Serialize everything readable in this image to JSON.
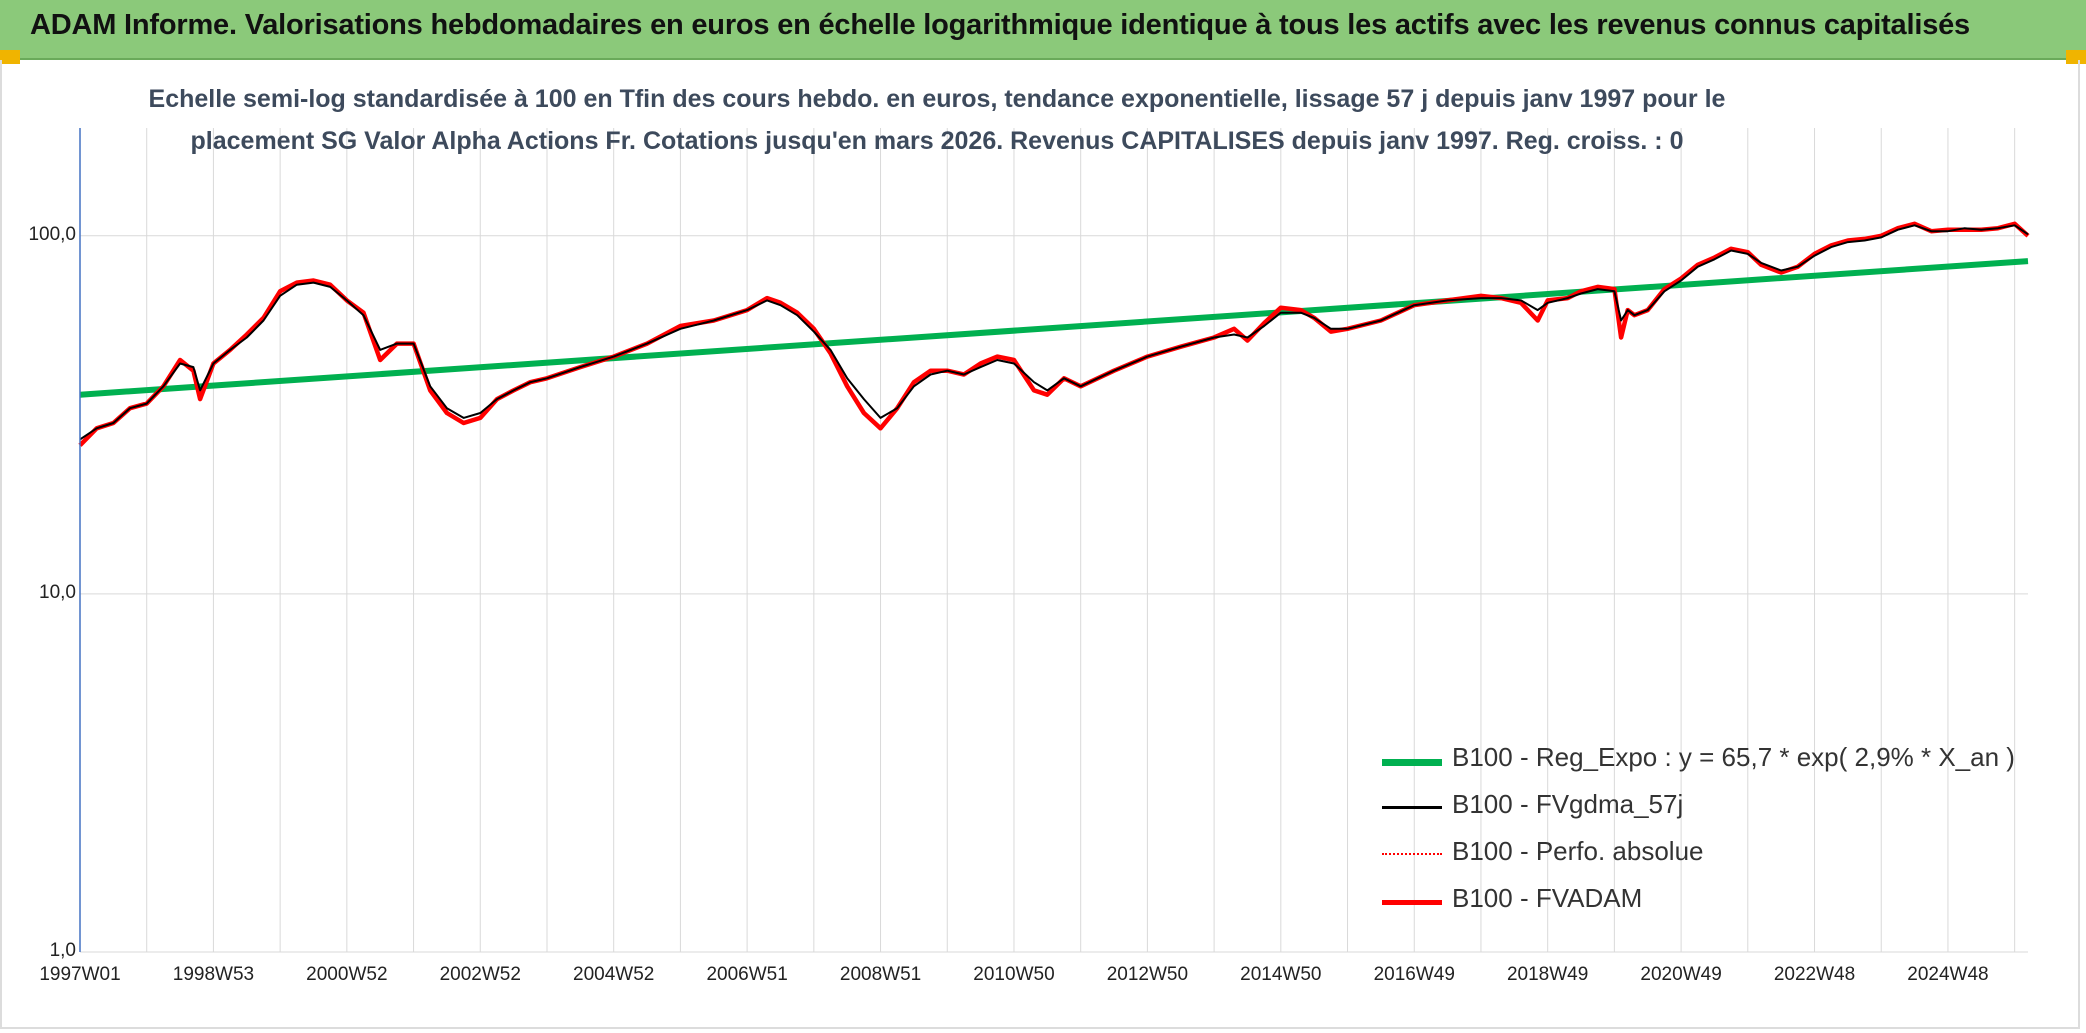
{
  "banner": {
    "title": "ADAM Informe. Valorisations hebdomadaires en euros en échelle logarithmique identique à tous les actifs avec les revenus connus capitalisés"
  },
  "colors": {
    "banner_bg": "#8bc97a",
    "regression": "#00b050",
    "smoothed": "#000000",
    "perfo": "#ff0000",
    "fvadam": "#ff0000",
    "grid": "#d9d9d9",
    "axis": "#4472c4"
  },
  "chart_data": {
    "type": "line",
    "title_line1": "Echelle semi-log standardisée à 100 en Tfin des cours hebdo. en euros, tendance exponentielle, lissage 57 j depuis janv 1997 pour le",
    "title_line2": "placement SG Valor Alpha Actions Fr. Cotations jusqu'en mars 2026. Revenus CAPITALISES depuis janv 1997. Reg. croiss. : 0",
    "y_scale": "log",
    "ylim": [
      1,
      200
    ],
    "xlim": [
      1997.0,
      2026.2
    ],
    "y_ticks": [
      {
        "value": 1,
        "label": "1,0"
      },
      {
        "value": 10,
        "label": "10,0"
      },
      {
        "value": 100,
        "label": "100,0"
      }
    ],
    "x_ticks": [
      {
        "value": 1997.0,
        "label": "1997W01"
      },
      {
        "value": 1999.0,
        "label": "1998W53"
      },
      {
        "value": 2001.0,
        "label": "2000W52"
      },
      {
        "value": 2003.0,
        "label": "2002W52"
      },
      {
        "value": 2005.0,
        "label": "2004W52"
      },
      {
        "value": 2007.0,
        "label": "2006W51"
      },
      {
        "value": 2009.0,
        "label": "2008W51"
      },
      {
        "value": 2011.0,
        "label": "2010W50"
      },
      {
        "value": 2013.0,
        "label": "2012W50"
      },
      {
        "value": 2015.0,
        "label": "2014W50"
      },
      {
        "value": 2017.0,
        "label": "2016W49"
      },
      {
        "value": 2019.0,
        "label": "2018W49"
      },
      {
        "value": 2021.0,
        "label": "2020W49"
      },
      {
        "value": 2023.0,
        "label": "2022W48"
      },
      {
        "value": 2025.0,
        "label": "2024W48"
      }
    ],
    "grid": true,
    "legend_position": "bottom-right",
    "x": [
      1997.0,
      1997.25,
      1997.5,
      1997.75,
      1998.0,
      1998.25,
      1998.5,
      1998.7,
      1998.8,
      1999.0,
      1999.25,
      1999.5,
      1999.75,
      2000.0,
      2000.25,
      2000.5,
      2000.75,
      2001.0,
      2001.25,
      2001.5,
      2001.75,
      2002.0,
      2002.25,
      2002.5,
      2002.75,
      2003.0,
      2003.25,
      2003.5,
      2003.75,
      2004.0,
      2004.5,
      2005.0,
      2005.5,
      2006.0,
      2006.5,
      2007.0,
      2007.3,
      2007.5,
      2007.75,
      2008.0,
      2008.25,
      2008.5,
      2008.75,
      2009.0,
      2009.25,
      2009.5,
      2009.75,
      2010.0,
      2010.25,
      2010.5,
      2010.75,
      2011.0,
      2011.3,
      2011.5,
      2011.75,
      2012.0,
      2012.5,
      2013.0,
      2013.5,
      2014.0,
      2014.3,
      2014.5,
      2014.75,
      2015.0,
      2015.3,
      2015.5,
      2015.75,
      2016.0,
      2016.5,
      2017.0,
      2017.5,
      2018.0,
      2018.3,
      2018.6,
      2018.85,
      2019.0,
      2019.3,
      2019.5,
      2019.75,
      2020.0,
      2020.1,
      2020.2,
      2020.3,
      2020.5,
      2020.75,
      2021.0,
      2021.25,
      2021.5,
      2021.75,
      2022.0,
      2022.2,
      2022.5,
      2022.75,
      2023.0,
      2023.25,
      2023.5,
      2023.75,
      2024.0,
      2024.25,
      2024.5,
      2024.75,
      2025.0,
      2025.25,
      2025.5,
      2025.75,
      2026.0,
      2026.2
    ],
    "series": [
      {
        "name": "B100 - Reg_Expo : y = 65,7 * exp( 2,9% *  X_an )",
        "role": "regression",
        "x": [
          1997.0,
          2026.2
        ],
        "values": [
          36,
          85
        ]
      },
      {
        "name": "B100 - FVgdma_57j",
        "role": "smoothed",
        "values": [
          27,
          29,
          30,
          33,
          34,
          38,
          44,
          43,
          37,
          44,
          48,
          52,
          58,
          68,
          73,
          74,
          72,
          66,
          60,
          48,
          50,
          50,
          38,
          33,
          31,
          32,
          35,
          37,
          39,
          40,
          43,
          46,
          50,
          55,
          58,
          62,
          66,
          64,
          60,
          54,
          48,
          40,
          35,
          31,
          33,
          38,
          41,
          42,
          41,
          43,
          45,
          44,
          39,
          37,
          40,
          38,
          42,
          46,
          49,
          52,
          53,
          52,
          56,
          61,
          61,
          59,
          55,
          55,
          58,
          64,
          66,
          67,
          67,
          66,
          62,
          65,
          67,
          69,
          71,
          70,
          58,
          62,
          60,
          62,
          70,
          75,
          82,
          86,
          91,
          89,
          84,
          80,
          82,
          88,
          93,
          96,
          97,
          99,
          104,
          107,
          103,
          103,
          105,
          104,
          105,
          107,
          101
        ]
      },
      {
        "name": "B100 - Perfo. absolue",
        "role": "perfo",
        "values": [
          26,
          29,
          30,
          33,
          34,
          38,
          45,
          42,
          35,
          44,
          48,
          53,
          59,
          70,
          74,
          75,
          73,
          66,
          61,
          45,
          50,
          50,
          37,
          32,
          30,
          31,
          35,
          37,
          39,
          40,
          43,
          46,
          50,
          56,
          58,
          62,
          67,
          65,
          61,
          55,
          47,
          38,
          32,
          29,
          33,
          39,
          42,
          42,
          41,
          44,
          46,
          45,
          37,
          36,
          40,
          38,
          42,
          46,
          49,
          52,
          55,
          51,
          57,
          63,
          62,
          59,
          54,
          55,
          58,
          64,
          66,
          68,
          67,
          65,
          58,
          66,
          67,
          70,
          72,
          71,
          52,
          62,
          60,
          62,
          71,
          76,
          83,
          87,
          92,
          90,
          83,
          79,
          82,
          89,
          94,
          97,
          98,
          100,
          105,
          108,
          103,
          104,
          104,
          104,
          105,
          108,
          100
        ]
      },
      {
        "name": "B100 - FVADAM",
        "role": "fvadam",
        "values": [
          26,
          29,
          30,
          33,
          34,
          38,
          45,
          42,
          35,
          44,
          48,
          53,
          59,
          70,
          74,
          75,
          73,
          66,
          61,
          45,
          50,
          50,
          37,
          32,
          30,
          31,
          35,
          37,
          39,
          40,
          43,
          46,
          50,
          56,
          58,
          62,
          67,
          65,
          61,
          55,
          47,
          38,
          32,
          29,
          33,
          39,
          42,
          42,
          41,
          44,
          46,
          45,
          37,
          36,
          40,
          38,
          42,
          46,
          49,
          52,
          55,
          51,
          57,
          63,
          62,
          59,
          54,
          55,
          58,
          64,
          66,
          68,
          67,
          65,
          58,
          66,
          67,
          70,
          72,
          71,
          52,
          62,
          60,
          62,
          71,
          76,
          83,
          87,
          92,
          90,
          83,
          79,
          82,
          89,
          94,
          97,
          98,
          100,
          105,
          108,
          103,
          104,
          104,
          104,
          105,
          108,
          100
        ]
      }
    ]
  }
}
